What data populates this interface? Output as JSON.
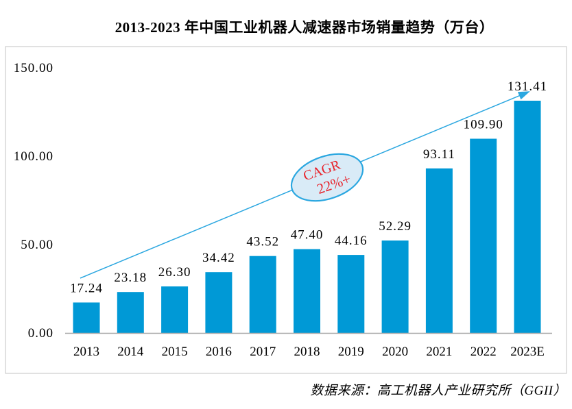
{
  "title": "2013-2023 年中国工业机器人减速器市场销量趋势（万台）",
  "source_note": "数据来源：高工机器人产业研究所（GGII）",
  "chart_data": {
    "type": "bar",
    "title": "2013-2023 年中国工业机器人减速器市场销量趋势（万台）",
    "categories": [
      "2013",
      "2014",
      "2015",
      "2016",
      "2017",
      "2018",
      "2019",
      "2020",
      "2021",
      "2022",
      "2023E"
    ],
    "values": [
      17.24,
      23.18,
      26.3,
      34.42,
      43.52,
      47.4,
      44.16,
      52.29,
      93.11,
      109.9,
      131.41
    ],
    "value_labels": [
      "17.24",
      "23.18",
      "26.30",
      "34.42",
      "43.52",
      "47.40",
      "44.16",
      "52.29",
      "93.11",
      "109.90",
      "131.41"
    ],
    "xlabel": "",
    "ylabel": "",
    "ylim": [
      0,
      150
    ],
    "yticks": [
      0,
      50,
      100,
      150
    ],
    "ytick_labels": [
      "0.00",
      "50.00",
      "100.00",
      "150.00"
    ],
    "grid": false,
    "legend_position": "none",
    "bar_color": "#0099D6",
    "axis_color": "#A6A6A6",
    "border_color": "#C3C3C3",
    "label_color": "#000000",
    "annotation": {
      "text_line1": "CAGR",
      "text_line2": "22%+",
      "text_color": "#E8232B",
      "ellipse_fill": "#D9EBF7",
      "ellipse_stroke": "#2BA7E0",
      "arrow_color": "#2BA7E0"
    }
  }
}
